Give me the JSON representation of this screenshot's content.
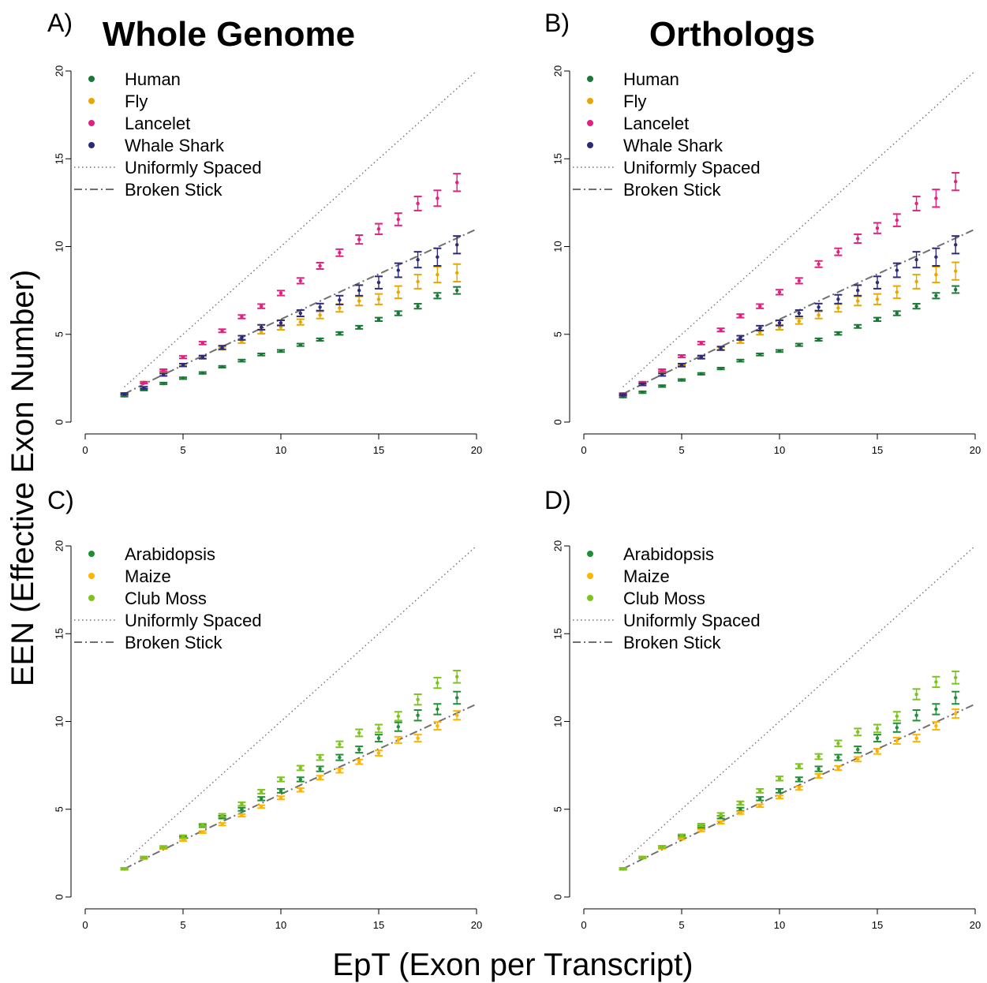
{
  "figure": {
    "ylabel": "EEN (Effective Exon Number)",
    "xlabel": "EpT (Exon per Transcript)"
  },
  "chart_data": [
    {
      "type": "scatter",
      "panel_label": "A)",
      "title": "Whole Genome",
      "xlim": [
        0,
        20
      ],
      "ylim": [
        0,
        20
      ],
      "xticks": [
        "0",
        "5",
        "10",
        "15",
        "20"
      ],
      "yticks": [
        "0",
        "5",
        "10",
        "15",
        "20"
      ],
      "grid": false,
      "legend_position": "top-left",
      "x": [
        2,
        3,
        4,
        5,
        6,
        7,
        8,
        9,
        10,
        11,
        12,
        13,
        14,
        15,
        16,
        17,
        18,
        19
      ],
      "series": [
        {
          "name": "Human",
          "color": "#1a7837",
          "values": [
            1.5,
            1.85,
            2.2,
            2.5,
            2.8,
            3.15,
            3.5,
            3.85,
            4.05,
            4.4,
            4.7,
            5.05,
            5.4,
            5.85,
            6.2,
            6.6,
            7.2,
            7.5
          ],
          "errors": [
            0.05,
            0.05,
            0.05,
            0.05,
            0.05,
            0.05,
            0.06,
            0.06,
            0.06,
            0.07,
            0.07,
            0.08,
            0.09,
            0.1,
            0.12,
            0.14,
            0.16,
            0.2
          ]
        },
        {
          "name": "Fly",
          "color": "#e6a800",
          "values": [
            1.6,
            2.25,
            2.85,
            3.25,
            3.7,
            4.2,
            4.6,
            5.15,
            5.4,
            5.7,
            6.1,
            6.5,
            6.9,
            7.0,
            7.4,
            8.0,
            8.4,
            8.5
          ],
          "errors": [
            0.05,
            0.05,
            0.06,
            0.06,
            0.07,
            0.08,
            0.1,
            0.12,
            0.14,
            0.16,
            0.2,
            0.22,
            0.26,
            0.3,
            0.35,
            0.4,
            0.45,
            0.5
          ]
        },
        {
          "name": "Lancelet",
          "color": "#e0217f",
          "values": [
            1.6,
            2.25,
            2.95,
            3.7,
            4.5,
            5.2,
            6.0,
            6.6,
            7.35,
            8.05,
            8.9,
            9.65,
            10.4,
            11.0,
            11.55,
            12.45,
            12.75,
            13.65
          ],
          "errors": [
            0.05,
            0.05,
            0.06,
            0.07,
            0.08,
            0.09,
            0.1,
            0.12,
            0.14,
            0.16,
            0.18,
            0.2,
            0.25,
            0.3,
            0.35,
            0.4,
            0.45,
            0.5
          ]
        },
        {
          "name": "Whale Shark",
          "color": "#2d2a78",
          "values": [
            1.6,
            1.95,
            2.7,
            3.25,
            3.7,
            4.25,
            4.8,
            5.4,
            5.65,
            6.2,
            6.55,
            6.95,
            7.5,
            7.95,
            8.65,
            9.25,
            9.4,
            10.1
          ],
          "errors": [
            0.05,
            0.06,
            0.07,
            0.08,
            0.09,
            0.1,
            0.12,
            0.14,
            0.15,
            0.18,
            0.2,
            0.25,
            0.3,
            0.35,
            0.4,
            0.45,
            0.5,
            0.5
          ]
        }
      ],
      "reference_lines": [
        {
          "name": "Uniformly Spaced",
          "style": "dotted"
        },
        {
          "name": "Broken Stick",
          "style": "dashdot"
        }
      ]
    },
    {
      "type": "scatter",
      "panel_label": "B)",
      "title": "Orthologs",
      "xlim": [
        0,
        20
      ],
      "ylim": [
        0,
        20
      ],
      "xticks": [
        "0",
        "5",
        "10",
        "15",
        "20"
      ],
      "yticks": [
        "0",
        "5",
        "10",
        "15",
        "20"
      ],
      "grid": false,
      "legend_position": "top-left",
      "x": [
        2,
        3,
        4,
        5,
        6,
        7,
        8,
        9,
        10,
        11,
        12,
        13,
        14,
        15,
        16,
        17,
        18,
        19
      ],
      "series": [
        {
          "name": "Human",
          "color": "#1a7837",
          "values": [
            1.45,
            1.7,
            2.05,
            2.4,
            2.75,
            3.05,
            3.5,
            3.85,
            4.05,
            4.4,
            4.7,
            5.05,
            5.45,
            5.85,
            6.2,
            6.6,
            7.2,
            7.55
          ],
          "errors": [
            0.05,
            0.05,
            0.05,
            0.05,
            0.05,
            0.05,
            0.06,
            0.06,
            0.06,
            0.07,
            0.07,
            0.08,
            0.09,
            0.1,
            0.12,
            0.14,
            0.16,
            0.2
          ]
        },
        {
          "name": "Fly",
          "color": "#e6a800",
          "values": [
            1.6,
            2.2,
            2.85,
            3.2,
            3.7,
            4.2,
            4.6,
            5.1,
            5.4,
            5.75,
            6.1,
            6.5,
            6.9,
            7.0,
            7.4,
            8.0,
            8.4,
            8.6
          ],
          "errors": [
            0.05,
            0.05,
            0.06,
            0.06,
            0.07,
            0.08,
            0.1,
            0.12,
            0.14,
            0.16,
            0.2,
            0.22,
            0.26,
            0.3,
            0.35,
            0.4,
            0.45,
            0.5
          ]
        },
        {
          "name": "Lancelet",
          "color": "#e0217f",
          "values": [
            1.6,
            2.25,
            2.95,
            3.75,
            4.5,
            5.25,
            6.05,
            6.6,
            7.4,
            8.05,
            9.0,
            9.7,
            10.45,
            11.05,
            11.5,
            12.45,
            12.75,
            13.7
          ],
          "errors": [
            0.05,
            0.05,
            0.06,
            0.07,
            0.08,
            0.09,
            0.1,
            0.12,
            0.14,
            0.16,
            0.18,
            0.2,
            0.25,
            0.3,
            0.35,
            0.4,
            0.5,
            0.5
          ]
        },
        {
          "name": "Whale Shark",
          "color": "#2d2a78",
          "values": [
            1.55,
            2.15,
            2.7,
            3.25,
            3.7,
            4.2,
            4.8,
            5.35,
            5.65,
            6.2,
            6.55,
            7.0,
            7.5,
            7.95,
            8.65,
            9.25,
            9.4,
            10.1
          ],
          "errors": [
            0.05,
            0.06,
            0.07,
            0.08,
            0.09,
            0.1,
            0.12,
            0.14,
            0.15,
            0.18,
            0.2,
            0.25,
            0.3,
            0.35,
            0.4,
            0.45,
            0.5,
            0.5
          ]
        }
      ],
      "reference_lines": [
        {
          "name": "Uniformly Spaced",
          "style": "dotted"
        },
        {
          "name": "Broken Stick",
          "style": "dashdot"
        }
      ]
    },
    {
      "type": "scatter",
      "panel_label": "C)",
      "title": "",
      "xlim": [
        0,
        20
      ],
      "ylim": [
        0,
        20
      ],
      "xticks": [
        "0",
        "5",
        "10",
        "15",
        "20"
      ],
      "yticks": [
        "0",
        "5",
        "10",
        "15",
        "20"
      ],
      "grid": false,
      "legend_position": "top-left",
      "x": [
        2,
        3,
        4,
        5,
        6,
        7,
        8,
        9,
        10,
        11,
        12,
        13,
        14,
        15,
        16,
        17,
        18,
        19
      ],
      "series": [
        {
          "name": "Arabidopsis",
          "color": "#1f8f35",
          "values": [
            1.6,
            2.25,
            2.8,
            3.4,
            4.05,
            4.55,
            5.0,
            5.6,
            6.05,
            6.7,
            7.3,
            7.95,
            8.4,
            9.05,
            9.7,
            10.35,
            10.7,
            11.35
          ],
          "errors": [
            0.05,
            0.05,
            0.06,
            0.06,
            0.07,
            0.08,
            0.09,
            0.1,
            0.11,
            0.12,
            0.14,
            0.16,
            0.18,
            0.2,
            0.25,
            0.3,
            0.3,
            0.35
          ]
        },
        {
          "name": "Maize",
          "color": "#ffb400",
          "values": [
            1.6,
            2.2,
            2.8,
            3.25,
            3.7,
            4.15,
            4.65,
            5.15,
            5.65,
            6.1,
            6.8,
            7.2,
            7.7,
            8.2,
            8.95,
            9.05,
            9.75,
            10.35
          ],
          "errors": [
            0.05,
            0.05,
            0.05,
            0.06,
            0.06,
            0.07,
            0.07,
            0.08,
            0.09,
            0.1,
            0.11,
            0.12,
            0.13,
            0.15,
            0.18,
            0.2,
            0.22,
            0.25
          ]
        },
        {
          "name": "Club Moss",
          "color": "#7cc31d",
          "values": [
            1.6,
            2.25,
            2.85,
            3.45,
            4.1,
            4.65,
            5.3,
            6.0,
            6.7,
            7.35,
            7.95,
            8.7,
            9.35,
            9.6,
            10.3,
            11.25,
            12.2,
            12.55
          ],
          "errors": [
            0.05,
            0.05,
            0.06,
            0.07,
            0.08,
            0.09,
            0.1,
            0.11,
            0.12,
            0.13,
            0.15,
            0.17,
            0.2,
            0.22,
            0.25,
            0.3,
            0.3,
            0.35
          ]
        }
      ],
      "reference_lines": [
        {
          "name": "Uniformly Spaced",
          "style": "dotted"
        },
        {
          "name": "Broken Stick",
          "style": "dashdot"
        }
      ]
    },
    {
      "type": "scatter",
      "panel_label": "D)",
      "title": "",
      "xlim": [
        0,
        20
      ],
      "ylim": [
        0,
        20
      ],
      "xticks": [
        "0",
        "5",
        "10",
        "15",
        "20"
      ],
      "yticks": [
        "0",
        "5",
        "10",
        "15",
        "20"
      ],
      "grid": false,
      "legend_position": "top-left",
      "x": [
        2,
        3,
        4,
        5,
        6,
        7,
        8,
        9,
        10,
        11,
        12,
        13,
        14,
        15,
        16,
        17,
        18,
        19
      ],
      "series": [
        {
          "name": "Arabidopsis",
          "color": "#1f8f35",
          "values": [
            1.6,
            2.25,
            2.85,
            3.45,
            4.0,
            4.55,
            5.0,
            5.6,
            6.05,
            6.7,
            7.3,
            7.95,
            8.4,
            9.05,
            9.65,
            10.35,
            10.7,
            11.35
          ],
          "errors": [
            0.05,
            0.05,
            0.06,
            0.06,
            0.07,
            0.08,
            0.09,
            0.1,
            0.11,
            0.12,
            0.14,
            0.16,
            0.18,
            0.2,
            0.25,
            0.3,
            0.3,
            0.35
          ]
        },
        {
          "name": "Maize",
          "color": "#ffb400",
          "values": [
            1.6,
            2.25,
            2.8,
            3.35,
            3.8,
            4.25,
            4.8,
            5.2,
            5.7,
            6.2,
            6.9,
            7.35,
            7.85,
            8.3,
            8.9,
            9.05,
            9.75,
            10.45
          ],
          "errors": [
            0.05,
            0.05,
            0.05,
            0.06,
            0.06,
            0.07,
            0.07,
            0.08,
            0.09,
            0.1,
            0.11,
            0.12,
            0.13,
            0.15,
            0.18,
            0.2,
            0.22,
            0.25
          ]
        },
        {
          "name": "Club Moss",
          "color": "#7cc31d",
          "values": [
            1.6,
            2.25,
            2.85,
            3.5,
            4.1,
            4.7,
            5.35,
            6.05,
            6.75,
            7.45,
            8.0,
            8.75,
            9.4,
            9.6,
            10.3,
            11.55,
            12.25,
            12.5
          ],
          "errors": [
            0.05,
            0.05,
            0.06,
            0.07,
            0.08,
            0.09,
            0.1,
            0.11,
            0.12,
            0.13,
            0.15,
            0.17,
            0.2,
            0.22,
            0.25,
            0.3,
            0.3,
            0.35
          ]
        }
      ],
      "reference_lines": [
        {
          "name": "Uniformly Spaced",
          "style": "dotted"
        },
        {
          "name": "Broken Stick",
          "style": "dashdot"
        }
      ]
    }
  ]
}
